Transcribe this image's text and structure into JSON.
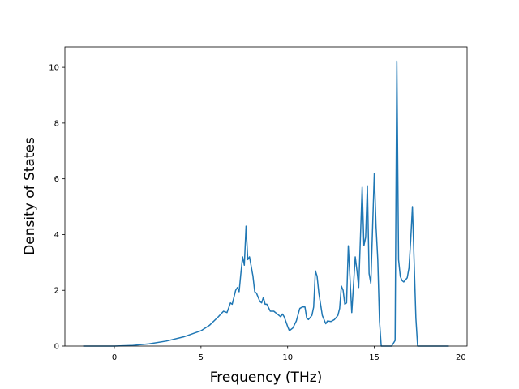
{
  "chart_data": {
    "type": "line",
    "xlabel": "Frequency (THz)",
    "ylabel": "Density of States",
    "color": "#1f77b4",
    "x": [
      -1.8,
      -0.5,
      0,
      1,
      2,
      3,
      4,
      5,
      5.5,
      6,
      6.3,
      6.5,
      6.7,
      6.8,
      7.0,
      7.1,
      7.2,
      7.3,
      7.4,
      7.5,
      7.6,
      7.7,
      7.8,
      8.0,
      8.1,
      8.2,
      8.4,
      8.5,
      8.6,
      8.7,
      8.8,
      9.0,
      9.2,
      9.4,
      9.6,
      9.7,
      9.8,
      10.0,
      10.1,
      10.3,
      10.5,
      10.7,
      10.9,
      11.0,
      11.1,
      11.2,
      11.4,
      11.5,
      11.6,
      11.7,
      11.8,
      12.0,
      12.2,
      12.3,
      12.5,
      12.7,
      12.9,
      13.0,
      13.1,
      13.2,
      13.3,
      13.4,
      13.5,
      13.6,
      13.7,
      13.9,
      14.0,
      14.1,
      14.3,
      14.4,
      14.5,
      14.6,
      14.7,
      14.8,
      15.0,
      15.1,
      15.2,
      15.3,
      15.4,
      16.0,
      16.2,
      16.3,
      16.4,
      16.5,
      16.6,
      16.7,
      16.9,
      17.0,
      17.1,
      17.2,
      17.3,
      17.4,
      17.5,
      19.3
    ],
    "values": [
      0,
      0,
      0,
      0.02,
      0.08,
      0.18,
      0.33,
      0.55,
      0.75,
      1.05,
      1.25,
      1.2,
      1.55,
      1.5,
      2.0,
      2.1,
      1.95,
      2.6,
      3.2,
      2.9,
      4.3,
      3.1,
      3.2,
      2.5,
      1.95,
      1.9,
      1.6,
      1.55,
      1.75,
      1.5,
      1.5,
      1.25,
      1.25,
      1.15,
      1.05,
      1.15,
      1.05,
      0.7,
      0.55,
      0.65,
      0.9,
      1.35,
      1.42,
      1.4,
      1.0,
      0.95,
      1.1,
      1.4,
      2.7,
      2.5,
      1.9,
      1.1,
      0.8,
      0.9,
      0.88,
      0.95,
      1.1,
      1.35,
      2.15,
      2.0,
      1.5,
      1.55,
      3.6,
      2.4,
      1.2,
      3.2,
      2.7,
      2.1,
      5.7,
      3.6,
      3.9,
      5.75,
      2.6,
      2.25,
      6.2,
      4.3,
      3.1,
      0.9,
      0,
      0,
      0.2,
      10.22,
      3.1,
      2.5,
      2.35,
      2.3,
      2.45,
      2.8,
      3.8,
      5.0,
      3.0,
      1.0,
      0,
      0
    ],
    "xlim": [
      -2.855,
      20.355
    ],
    "xticks": [
      0,
      5,
      10,
      15,
      20
    ],
    "ylim": [
      0,
      10.73
    ],
    "yticks": [
      0,
      2,
      4,
      6,
      8,
      10
    ]
  }
}
